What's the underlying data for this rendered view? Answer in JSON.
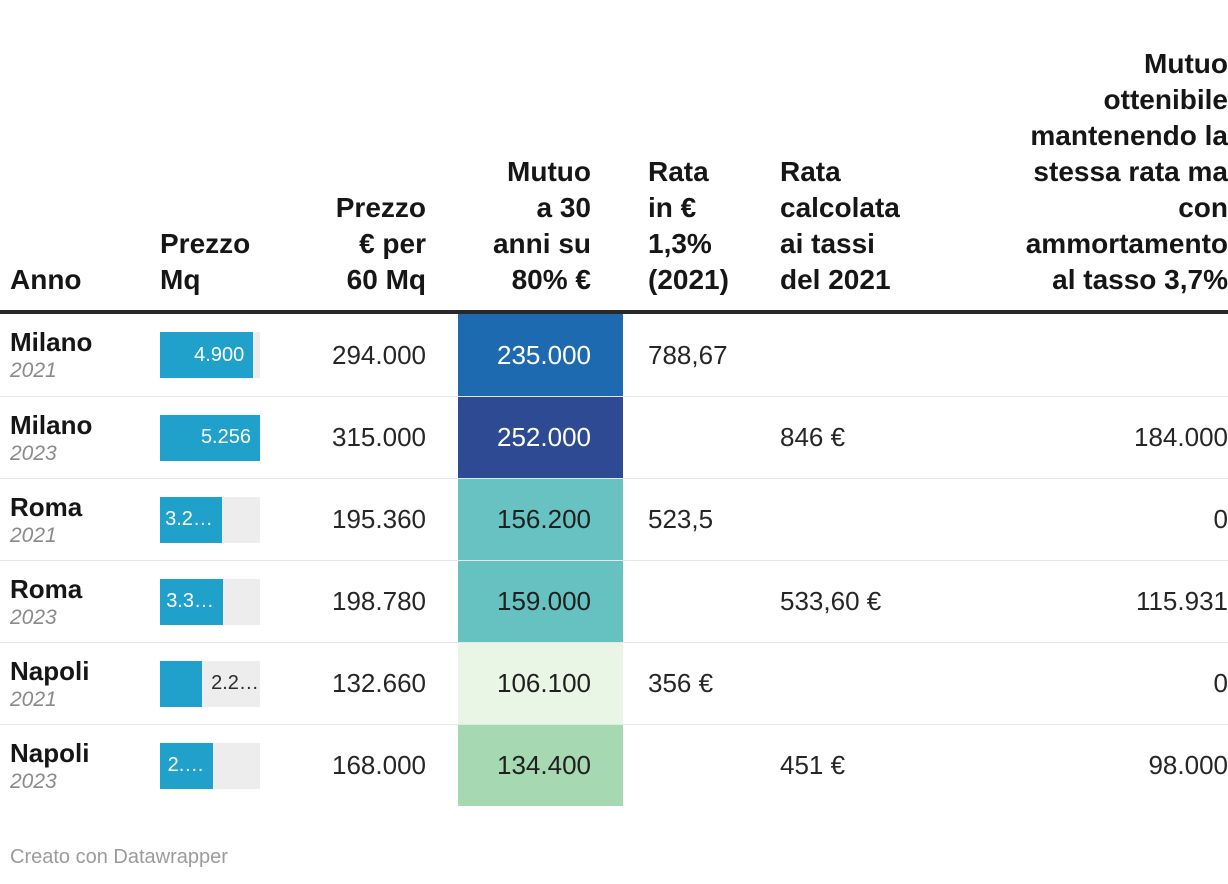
{
  "colors": {
    "bar_fill": "#20a1cb",
    "bar_track": "#ededed",
    "header_rule": "#292929",
    "row_separator": "#e7e7e7",
    "text_dark": "#161616",
    "text_year": "#8a8a8a",
    "footer_gray": "#9b9b9b"
  },
  "table": {
    "headers": {
      "anno": "Anno",
      "prezzo_mq": "Prezzo\nMq",
      "prezzo_60mq": "Prezzo\n€ per\n60 Mq",
      "mutuo_30": "Mutuo\na 30\nanni su\n80% €",
      "rata_13": "Rata\nin €\n1,3%\n(2021)",
      "rata_calcolata": "Rata\ncalcolata\nai tassi\ndel 2021",
      "mutuo_ottenibile": "Mutuo\nottenibile\nmantenendo la\nstessa rata ma\ncon\nammortamento\nal tasso 3,7%"
    },
    "bar_scale_max": 5256,
    "rows": [
      {
        "city": "Milano",
        "year": "2021",
        "bar_label": "4.900",
        "bar_percent": 93.2,
        "bar_label_inside": true,
        "prezzo_60mq": "294.000",
        "mutuo_80": {
          "display": "235.000",
          "bg": "#1d6ab1",
          "text_color": "#ffffff"
        },
        "rata_2021": "788,67",
        "rata_tassi_2021": "",
        "mutuo_ottenibile": ""
      },
      {
        "city": "Milano",
        "year": "2023",
        "bar_label": "5.256",
        "bar_percent": 100,
        "bar_label_inside": true,
        "prezzo_60mq": "315.000",
        "mutuo_80": {
          "display": "252.000",
          "bg": "#2d4a92",
          "text_color": "#ffffff"
        },
        "rata_2021": "",
        "rata_tassi_2021": "846 €",
        "mutuo_ottenibile": "184.000"
      },
      {
        "city": "Roma",
        "year": "2021",
        "bar_label": "3.2…",
        "bar_percent": 61.9,
        "bar_label_inside": true,
        "prezzo_60mq": "195.360",
        "mutuo_80": {
          "display": "156.200",
          "bg": "#68c2c1",
          "text_color": "#1f1f1f"
        },
        "rata_2021": "523,5",
        "rata_tassi_2021": "",
        "mutuo_ottenibile": "0"
      },
      {
        "city": "Roma",
        "year": "2023",
        "bar_label": "3.3…",
        "bar_percent": 63.0,
        "bar_label_inside": true,
        "prezzo_60mq": "198.780",
        "mutuo_80": {
          "display": "159.000",
          "bg": "#66c1c1",
          "text_color": "#1f1f1f"
        },
        "rata_2021": "",
        "rata_tassi_2021": "533,60 €",
        "mutuo_ottenibile": "115.931"
      },
      {
        "city": "Napoli",
        "year": "2021",
        "bar_label": "2.2…",
        "bar_percent": 42.1,
        "bar_label_inside": false,
        "prezzo_60mq": "132.660",
        "mutuo_80": {
          "display": "106.100",
          "bg": "#e9f5e5",
          "text_color": "#1f1f1f"
        },
        "rata_2021": "356 €",
        "rata_tassi_2021": "",
        "mutuo_ottenibile": "0"
      },
      {
        "city": "Napoli",
        "year": "2023",
        "bar_label": "2.…",
        "bar_percent": 53.3,
        "bar_label_inside": true,
        "prezzo_60mq": "168.000",
        "mutuo_80": {
          "display": "134.400",
          "bg": "#a6d8b1",
          "text_color": "#1f1f1f"
        },
        "rata_2021": "",
        "rata_tassi_2021": "451 €",
        "mutuo_ottenibile": "98.000"
      }
    ]
  },
  "footer": {
    "credit": "Creato con Datawrapper"
  },
  "chart_data": {
    "type": "table",
    "title": "",
    "row_labels": [
      "Milano 2021",
      "Milano 2023",
      "Roma 2021",
      "Roma 2023",
      "Napoli 2021",
      "Napoli 2023"
    ],
    "columns": [
      "Prezzo Mq",
      "Prezzo € per 60 Mq",
      "Mutuo a 30 anni su 80% €",
      "Rata in € 1,3% (2021)",
      "Rata calcolata ai tassi del 2021",
      "Mutuo ottenibile mantenendo la stessa rata ma con ammortamento al tasso 3,7%"
    ],
    "prezzo_mq": [
      4900,
      5256,
      3256,
      3313,
      2211,
      2800
    ],
    "prezzo_60mq": [
      294000,
      315000,
      195360,
      198780,
      132660,
      168000
    ],
    "mutuo_80pct": [
      235000,
      252000,
      156200,
      159000,
      106100,
      134400
    ],
    "rata_1_3pct_2021": [
      788.67,
      null,
      523.5,
      null,
      356,
      null
    ],
    "rata_tassi_2021": [
      null,
      846,
      null,
      533.6,
      null,
      451
    ],
    "mutuo_ottenibile_3_7pct": [
      null,
      184000,
      0,
      115931,
      0,
      98000
    ],
    "bar_column_scale_max": 5256,
    "heatmap_column": "Mutuo a 30 anni su 80% €",
    "heatmap_colors": [
      "#1d6ab1",
      "#2d4a92",
      "#68c2c1",
      "#66c1c1",
      "#e9f5e5",
      "#a6d8b1"
    ]
  }
}
